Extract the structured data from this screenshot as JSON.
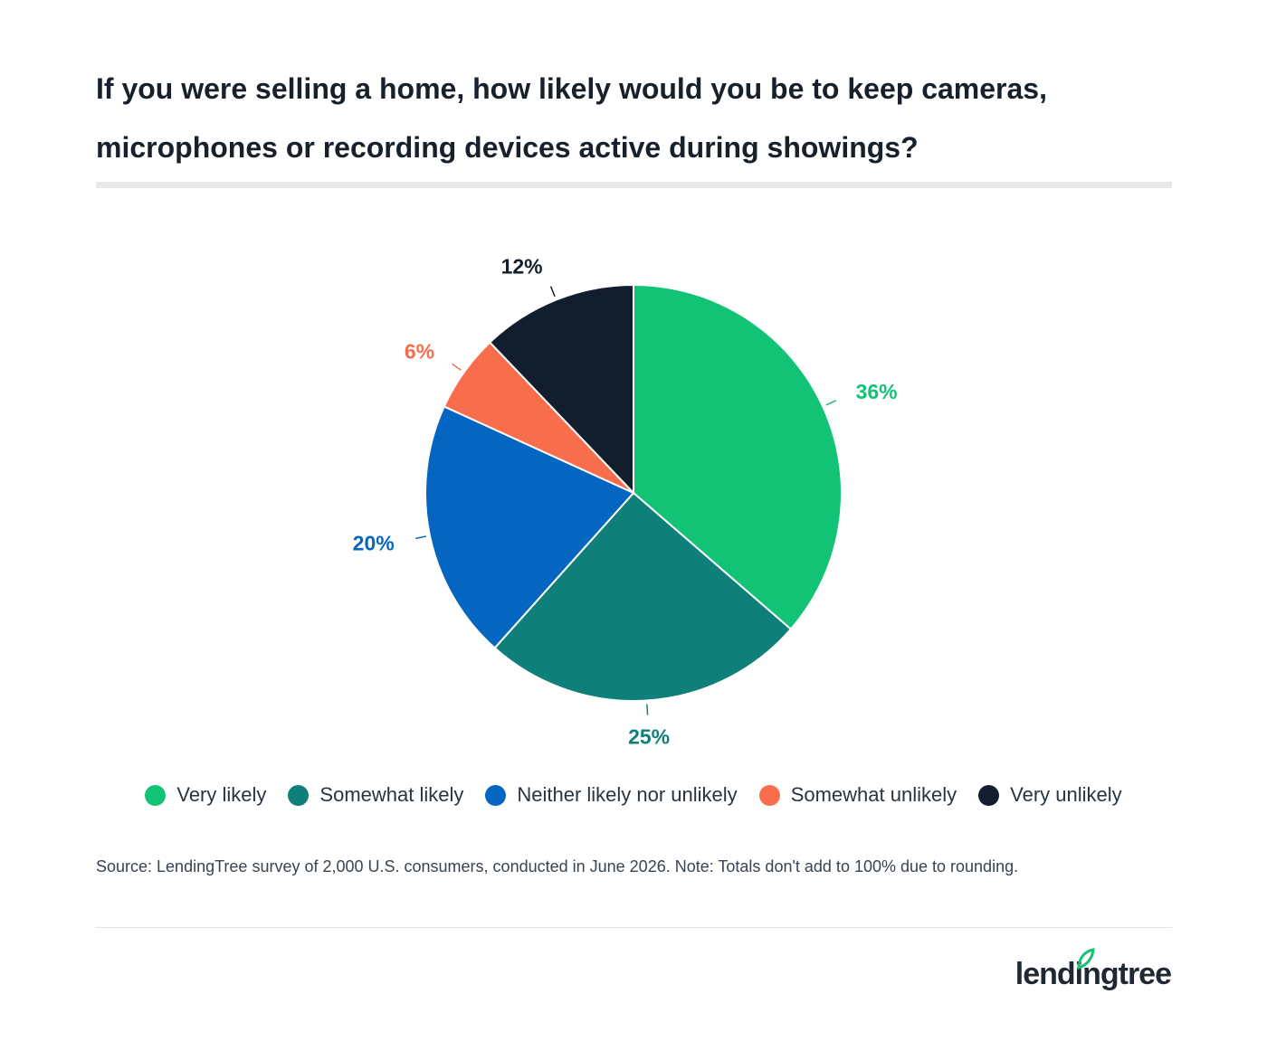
{
  "chart_data": {
    "type": "pie",
    "title": "If you were selling a home, how likely would you be to keep cameras, microphones or recording devices active during showings?",
    "slices": [
      {
        "name": "Very likely",
        "value": 36,
        "label": "36%",
        "color": "#12c275",
        "label_color": "#12c275"
      },
      {
        "name": "Somewhat likely",
        "value": 25,
        "label": "25%",
        "color": "#0f7f79",
        "label_color": "#0f7f79"
      },
      {
        "name": "Neither likely nor unlikely",
        "value": 20,
        "label": "20%",
        "color": "#0466c0",
        "label_color": "#0466c0"
      },
      {
        "name": "Somewhat unlikely",
        "value": 6,
        "label": "6%",
        "color": "#f86d4b",
        "label_color": "#f86d4b"
      },
      {
        "name": "Very unlikely",
        "value": 12,
        "label": "12%",
        "color": "#121e2e",
        "label_color": "#121e2e"
      }
    ],
    "legend_position": "bottom"
  },
  "footer": {
    "source_text": "Source: LendingTree survey of 2,000 U.S. consumers, conducted in June 2026. Note: Totals don't add to 100% due to rounding."
  },
  "brand": {
    "logo_text": "lendingtree",
    "logo_icon": "leaf-icon"
  }
}
